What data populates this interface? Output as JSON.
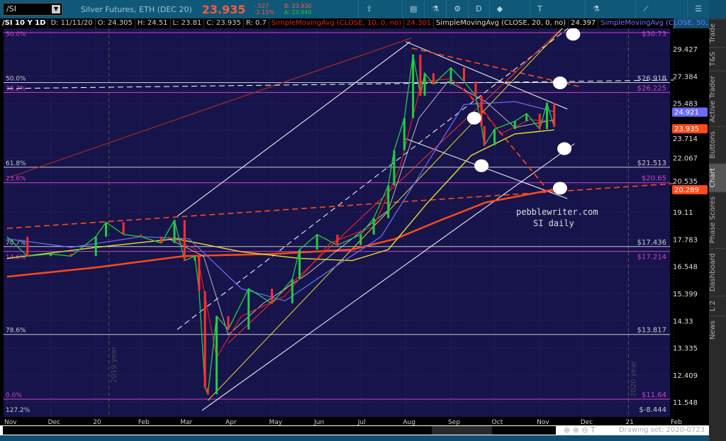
{
  "header": {
    "symbol": "/SI",
    "description": "Silver Futures, ETH (DEC 20)",
    "last": "23.935",
    "change": "-.527",
    "change_pct": "-2.15%",
    "bid": "B: 23.930",
    "ask": "A: 23.940"
  },
  "toolbar": [
    {
      "label": "Share",
      "icon": "share-icon"
    },
    {
      "label": "",
      "icon": "info-card-icon"
    },
    {
      "label": "",
      "icon": "flask-icon"
    },
    {
      "label": "",
      "icon": "gear-icon"
    },
    {
      "label": "D",
      "icon": ""
    },
    {
      "label": "Style",
      "icon": "style-icon"
    },
    {
      "label": "Drawings",
      "icon": "text-tool-icon"
    },
    {
      "label": "Studies",
      "icon": "flask-icon"
    },
    {
      "label": "Patterns",
      "icon": "patterns-icon"
    },
    {
      "label": "",
      "icon": "menu-icon"
    }
  ],
  "legend": {
    "title": "/SI 10 Y 1D",
    "date": "D: 11/11/20",
    "open": "O: 24.305",
    "high": "H: 24.51",
    "low": "L: 23.81",
    "close": "C: 23.935",
    "range": "R: 0.7",
    "sma10": "SimpleMovingAvg (CLOSE, 10, 0, no)",
    "sma10_val": "24.301",
    "sma20": "SimpleMovingAvg (CLOSE, 20, 0, no)",
    "sma20_val": "24.397",
    "sma50": "SimpleMovingAvg (CLOSE, 50,..."
  },
  "sidebar": [
    "Trade",
    "T&S",
    "Active Trader",
    "Buttons",
    "Chart",
    "Phase Scores",
    "Dashboard",
    "L 2",
    "News"
  ],
  "footer": {
    "drawing_set": "Drawing set: 2020-0723"
  },
  "colors": {
    "background": "#16144a",
    "price": "#22cc44",
    "sma10": "#e02020",
    "sma20": "#dddddd",
    "sma50": "#7070ff",
    "sma100": "#e8e030",
    "sma200": "#ff4a1a",
    "fib_white": "#c8c8d0",
    "fib_magenta": "#d040d0"
  },
  "chart_data": {
    "type": "line",
    "scale": "log",
    "ylim": [
      11.2,
      31.5
    ],
    "xlim": [
      "2019-11-01",
      "2021-02-01"
    ],
    "grid": true,
    "x_ticks": [
      "Nov",
      "Dec",
      "20",
      "Feb",
      "Mar",
      "Apr",
      "May",
      "Jun",
      "Jul",
      "Aug",
      "Sep",
      "Oct",
      "Nov",
      "Dec",
      "21",
      "Feb"
    ],
    "y_ticks": [
      29.427,
      27.384,
      25.483,
      23.714,
      22.067,
      20.535,
      19.11,
      17.783,
      16.548,
      15.399,
      14.33,
      13.335,
      12.409,
      11.548
    ],
    "price_markers": [
      {
        "label": "24.921",
        "value": 24.921,
        "color": "#6a6aff"
      },
      {
        "label": "23.935",
        "value": 23.935,
        "color": "#ff4a1a"
      },
      {
        "label": "20.289",
        "value": 20.289,
        "color": "#ff4a1a"
      }
    ],
    "fib_levels": [
      {
        "pct": "50.0%",
        "price": "$30.73",
        "value": 30.73,
        "color": "magenta"
      },
      {
        "pct": "50.0%",
        "price": "$26.918",
        "value": 26.918,
        "color": "white"
      },
      {
        "pct": "38.2%",
        "price": "$26.225",
        "value": 26.225,
        "color": "magenta"
      },
      {
        "pct": "61.8%",
        "price": "$21.513",
        "value": 21.513,
        "color": "white"
      },
      {
        "pct": "23.6%",
        "price": "$20.65",
        "value": 20.65,
        "color": "magenta"
      },
      {
        "pct": "70.7%",
        "price": "$17.436",
        "value": 17.436,
        "color": "white"
      },
      {
        "pct": "14.6%",
        "price": "$17.214",
        "value": 17.214,
        "color": "magenta"
      },
      {
        "pct": "78.6%",
        "price": "$13.817",
        "value": 13.817,
        "color": "white"
      },
      {
        "pct": "0.0%",
        "price": "$11.64",
        "value": 11.64,
        "color": "magenta"
      },
      {
        "pct": "127.2%",
        "price": "$-8.444",
        "value": null,
        "color": "white"
      }
    ],
    "series": [
      {
        "name": "/SI",
        "color": "#22cc44",
        "points": [
          [
            "2019-11-01",
            17.9
          ],
          [
            "2019-11-15",
            17.0
          ],
          [
            "2019-12-01",
            17.1
          ],
          [
            "2019-12-15",
            17.0
          ],
          [
            "2020-01-01",
            17.9
          ],
          [
            "2020-01-08",
            18.6
          ],
          [
            "2020-01-20",
            18.0
          ],
          [
            "2020-02-01",
            17.9
          ],
          [
            "2020-02-15",
            17.6
          ],
          [
            "2020-02-24",
            18.7
          ],
          [
            "2020-03-02",
            16.8
          ],
          [
            "2020-03-09",
            17.0
          ],
          [
            "2020-03-12",
            15.5
          ],
          [
            "2020-03-16",
            12.0
          ],
          [
            "2020-03-18",
            11.8
          ],
          [
            "2020-03-24",
            14.5
          ],
          [
            "2020-04-01",
            14.0
          ],
          [
            "2020-04-15",
            15.6
          ],
          [
            "2020-05-01",
            15.0
          ],
          [
            "2020-05-15",
            16.0
          ],
          [
            "2020-05-20",
            17.3
          ],
          [
            "2020-06-01",
            18.0
          ],
          [
            "2020-06-15",
            17.5
          ],
          [
            "2020-07-01",
            18.0
          ],
          [
            "2020-07-10",
            18.8
          ],
          [
            "2020-07-20",
            20.5
          ],
          [
            "2020-07-24",
            22.5
          ],
          [
            "2020-07-31",
            24.5
          ],
          [
            "2020-08-06",
            29.0
          ],
          [
            "2020-08-11",
            26.0
          ],
          [
            "2020-08-14",
            27.6
          ],
          [
            "2020-08-20",
            26.8
          ],
          [
            "2020-09-01",
            28.0
          ],
          [
            "2020-09-10",
            27.0
          ],
          [
            "2020-09-18",
            26.0
          ],
          [
            "2020-09-22",
            24.0
          ],
          [
            "2020-09-24",
            22.8
          ],
          [
            "2020-10-01",
            23.8
          ],
          [
            "2020-10-15",
            24.3
          ],
          [
            "2020-10-23",
            24.8
          ],
          [
            "2020-11-01",
            23.8
          ],
          [
            "2020-11-06",
            25.5
          ],
          [
            "2020-11-11",
            23.935
          ]
        ]
      },
      {
        "name": "SimpleMovingAvg (CLOSE, 10, 0, no)",
        "color": "#e02020",
        "width": 1.2,
        "points": [
          [
            "2020-02-20",
            17.9
          ],
          [
            "2020-03-10",
            17.3
          ],
          [
            "2020-03-24",
            13.0
          ],
          [
            "2020-04-10",
            14.5
          ],
          [
            "2020-05-10",
            15.3
          ],
          [
            "2020-06-10",
            17.6
          ],
          [
            "2020-07-10",
            18.4
          ],
          [
            "2020-07-28",
            21.5
          ],
          [
            "2020-08-12",
            27.0
          ],
          [
            "2020-09-01",
            27.2
          ],
          [
            "2020-09-20",
            25.5
          ],
          [
            "2020-10-05",
            23.5
          ],
          [
            "2020-10-25",
            24.4
          ],
          [
            "2020-11-11",
            24.301
          ]
        ]
      },
      {
        "name": "SimpleMovingAvg (CLOSE, 20, 0, no)",
        "color": "#dddddd",
        "width": 0.8,
        "points": [
          [
            "2020-02-20",
            17.8
          ],
          [
            "2020-03-15",
            17.0
          ],
          [
            "2020-04-01",
            13.8
          ],
          [
            "2020-04-25",
            15.0
          ],
          [
            "2020-05-25",
            16.2
          ],
          [
            "2020-06-25",
            17.8
          ],
          [
            "2020-07-20",
            19.2
          ],
          [
            "2020-08-10",
            24.5
          ],
          [
            "2020-08-30",
            27.0
          ],
          [
            "2020-09-25",
            25.6
          ],
          [
            "2020-10-15",
            23.9
          ],
          [
            "2020-11-11",
            24.397
          ]
        ]
      },
      {
        "name": "SimpleMovingAvg (CLOSE, 50,...",
        "color": "#7070ff",
        "width": 1.2,
        "points": [
          [
            "2019-11-01",
            17.8
          ],
          [
            "2019-12-15",
            17.4
          ],
          [
            "2020-02-01",
            17.9
          ],
          [
            "2020-03-05",
            17.8
          ],
          [
            "2020-04-10",
            15.6
          ],
          [
            "2020-05-10",
            15.1
          ],
          [
            "2020-06-15",
            16.6
          ],
          [
            "2020-07-15",
            17.9
          ],
          [
            "2020-08-10",
            21.0
          ],
          [
            "2020-09-10",
            25.4
          ],
          [
            "2020-10-15",
            25.6
          ],
          [
            "2020-11-11",
            24.921
          ]
        ]
      },
      {
        "name": "SMA 100",
        "color": "#e8e030",
        "width": 1.4,
        "points": [
          [
            "2019-11-01",
            16.9
          ],
          [
            "2020-01-01",
            17.4
          ],
          [
            "2020-02-25",
            17.8
          ],
          [
            "2020-04-10",
            17.2
          ],
          [
            "2020-05-20",
            16.9
          ],
          [
            "2020-06-25",
            16.8
          ],
          [
            "2020-07-20",
            17.3
          ],
          [
            "2020-08-15",
            19.5
          ],
          [
            "2020-09-15",
            22.2
          ],
          [
            "2020-10-15",
            23.5
          ],
          [
            "2020-11-11",
            23.75
          ]
        ]
      },
      {
        "name": "SMA 200",
        "color": "#ff4a1a",
        "width": 2.5,
        "points": [
          [
            "2019-11-01",
            16.1
          ],
          [
            "2020-01-01",
            16.5
          ],
          [
            "2020-03-01",
            17.0
          ],
          [
            "2020-05-01",
            17.1
          ],
          [
            "2020-06-25",
            17.3
          ],
          [
            "2020-07-25",
            17.8
          ],
          [
            "2020-08-25",
            18.7
          ],
          [
            "2020-09-25",
            19.6
          ],
          [
            "2020-11-11",
            20.289
          ]
        ]
      }
    ],
    "drawings": [
      {
        "color": "#ff4a1a",
        "dash": true,
        "points": [
          [
            "2019-11-01",
            18.3
          ],
          [
            "2021-02-01",
            20.6
          ]
        ]
      },
      {
        "color": "#c03020",
        "dash": false,
        "points": [
          [
            "2019-11-01",
            20.9
          ],
          [
            "2020-08-05",
            30.3
          ]
        ]
      },
      {
        "color": "#ffffff",
        "dash": false,
        "points": [
          [
            "2020-03-14",
            11.3
          ],
          [
            "2020-11-25",
            22.9
          ]
        ]
      },
      {
        "color": "#ffffff",
        "dash": false,
        "points": [
          [
            "2020-02-26",
            18.9
          ],
          [
            "2020-08-04",
            30.0
          ]
        ]
      },
      {
        "color": "#ffffff",
        "dash": true,
        "points": [
          [
            "2020-02-26",
            14.0
          ],
          [
            "2020-11-25",
            31.5
          ]
        ]
      },
      {
        "color": "#ffffff",
        "dash": true,
        "points": [
          [
            "2019-11-01",
            26.5
          ],
          [
            "2021-02-01",
            27.1
          ]
        ]
      },
      {
        "color": "#ffffff",
        "dash": false,
        "points": [
          [
            "2020-08-01",
            30.0
          ],
          [
            "2020-11-20",
            25.1
          ]
        ]
      },
      {
        "color": "#ffffff",
        "dash": false,
        "points": [
          [
            "2020-08-01",
            23.2
          ],
          [
            "2020-11-20",
            19.8
          ]
        ]
      },
      {
        "color": "#ff4a1a",
        "dash": true,
        "points": [
          [
            "2020-08-05",
            29.5
          ],
          [
            "2020-11-30",
            26.6
          ]
        ]
      },
      {
        "color": "#ff4a1a",
        "dash": true,
        "points": [
          [
            "2020-09-10",
            26.5
          ],
          [
            "2020-11-05",
            20.4
          ]
        ]
      },
      {
        "color": "#ff3030",
        "dash": false,
        "points": [
          [
            "2020-04-01",
            13.5
          ],
          [
            "2020-11-20",
            31.5
          ]
        ]
      },
      {
        "color": "#e8e030",
        "dash": false,
        "points": [
          [
            "2020-03-18",
            11.6
          ],
          [
            "2020-11-20",
            31.5
          ]
        ]
      }
    ],
    "markers": [
      [
        "2020-11-24",
        30.6
      ],
      [
        "2020-11-15",
        26.9
      ],
      [
        "2020-09-17",
        24.5
      ],
      [
        "2020-09-22",
        21.6
      ],
      [
        "2020-11-15",
        20.35
      ],
      [
        "2020-11-18",
        22.6
      ]
    ],
    "annotations": [
      "pebblewriter.com",
      "SI daily"
    ],
    "watermarks": [
      "2019 year",
      "2020 year"
    ]
  }
}
